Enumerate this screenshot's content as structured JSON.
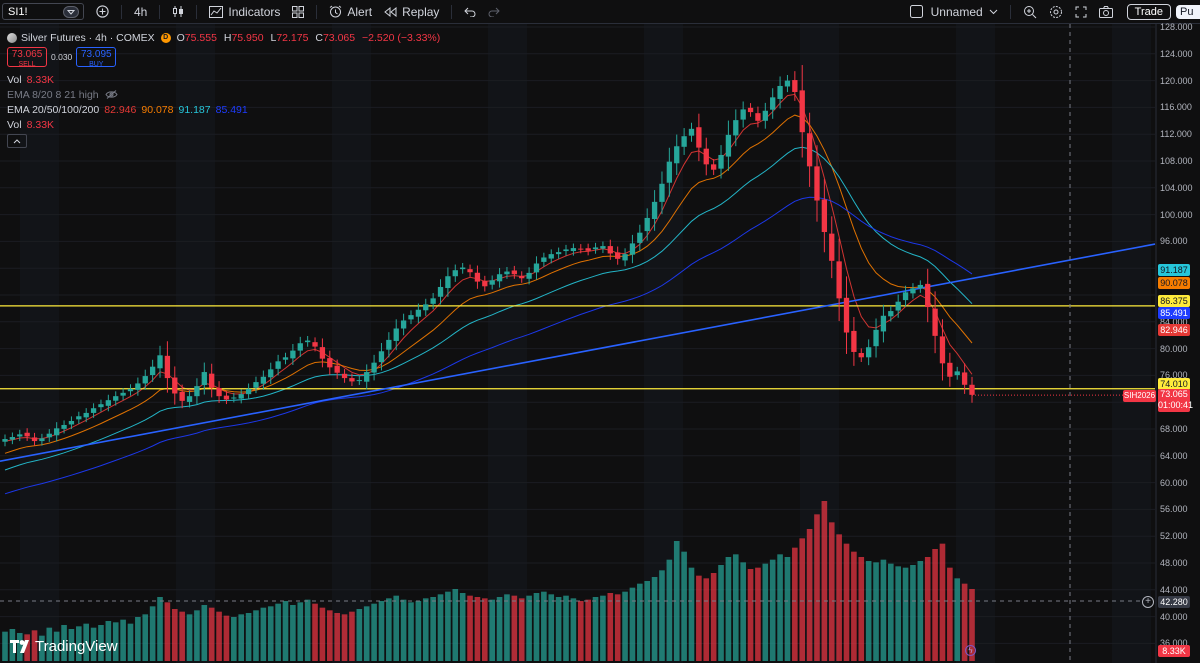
{
  "toolbar": {
    "symbol": "SI1!",
    "interval": "4h",
    "indicators_label": "Indicators",
    "alert_label": "Alert",
    "replay_label": "Replay",
    "layout_name": "Unnamed",
    "trade_label": "Trade",
    "publish_label": "Pu"
  },
  "legend": {
    "title": "Silver Futures · 4h · COMEX",
    "badge": "D",
    "ohlc": [
      {
        "k": "O",
        "v": "75.555"
      },
      {
        "k": "H",
        "v": "75.950"
      },
      {
        "k": "L",
        "v": "72.175"
      },
      {
        "k": "C",
        "v": "73.065"
      }
    ],
    "change": "−2.520 (−3.33%)",
    "sell_price": "73.065",
    "sell_label": "SELL",
    "spread": "0.030",
    "buy_price": "73.095",
    "buy_label": "BUY",
    "vol_label": "Vol",
    "vol_value": "8.33K",
    "ema_hidden": "EMA 8/20 8 21 high",
    "ema_label": "EMA 20/50/100/200",
    "ema_values": [
      "82.946",
      "90.078",
      "91.187",
      "85.491"
    ],
    "vol2_label": "Vol",
    "vol2_value": "8.33K"
  },
  "price_axis": {
    "ticks": [
      "128.000",
      "124.000",
      "120.000",
      "116.000",
      "112.000",
      "108.000",
      "104.000",
      "100.000",
      "96.000",
      "84.000",
      "80.000",
      "76.000",
      "68.000",
      "64.000",
      "60.000",
      "56.000",
      "52.000",
      "48.000",
      "44.000",
      "40.000",
      "36.000"
    ],
    "tags": {
      "ema100": "91.187",
      "ema50": "90.078",
      "level_upper": "86.375",
      "ema200": "85.491",
      "ema20": "82.946",
      "level_lower": "74.010",
      "contract": "SIH2026",
      "last_price": "73.065",
      "countdown": "01:00:41",
      "crosshair": "42.280",
      "volume": "8.33K"
    }
  },
  "colors": {
    "up": "#26a69a",
    "down": "#f23645",
    "trendline": "#2962ff",
    "level": "#ffeb3b",
    "ema20": "#e53935",
    "ema50": "#f57c00",
    "ema100": "#26c6da",
    "ema200": "#1e3cff"
  },
  "brand": "TradingView",
  "chart_data": {
    "type": "candlestick",
    "y_range": [
      36,
      128
    ],
    "levels": [
      86.375,
      74.01
    ],
    "closes": [
      66.5,
      66.8,
      67.2,
      66.9,
      66.2,
      66.6,
      67.3,
      68.1,
      68.6,
      69.2,
      69.9,
      70.4,
      71.1,
      71.7,
      72.3,
      72.9,
      73.4,
      74.0,
      74.8,
      75.9,
      77.3,
      79.0,
      75.6,
      73.3,
      72.2,
      72.9,
      74.4,
      76.5,
      74.2,
      72.9,
      72.4,
      72.7,
      73.2,
      74.0,
      75.0,
      75.8,
      76.9,
      78.1,
      78.7,
      79.7,
      80.8,
      81.2,
      80.3,
      78.5,
      77.2,
      76.4,
      75.6,
      75.1,
      75.3,
      76.5,
      77.9,
      79.6,
      81.3,
      83.0,
      84.2,
      85.0,
      85.8,
      86.6,
      87.5,
      89.2,
      90.8,
      91.7,
      92.1,
      91.4,
      90.0,
      89.3,
      90.2,
      91.1,
      91.5,
      91.1,
      90.5,
      91.3,
      92.7,
      93.6,
      94.1,
      94.4,
      94.8,
      95.0,
      94.9,
      94.6,
      95.1,
      95.3,
      94.2,
      93.4,
      94.1,
      95.7,
      97.3,
      99.5,
      101.9,
      104.6,
      107.9,
      110.2,
      111.7,
      112.8,
      110.0,
      107.5,
      106.7,
      108.9,
      111.9,
      114.1,
      115.7,
      115.3,
      114.0,
      115.5,
      117.5,
      119.2,
      120.0,
      118.3,
      112.3,
      107.2,
      102.1,
      97.4,
      93.1,
      87.5,
      82.4,
      79.5,
      78.7,
      80.2,
      82.8,
      84.9,
      85.6,
      87.0,
      88.4,
      89.0,
      89.5,
      86.2,
      81.9,
      77.8,
      75.8,
      76.6,
      74.6,
      73.1
    ],
    "volumes": [
      22,
      24,
      21,
      20,
      23,
      19,
      25,
      22,
      27,
      24,
      26,
      28,
      25,
      27,
      30,
      29,
      31,
      28,
      33,
      35,
      41,
      48,
      44,
      39,
      37,
      35,
      38,
      42,
      40,
      37,
      34,
      33,
      35,
      36,
      38,
      40,
      41,
      43,
      45,
      42,
      44,
      46,
      43,
      40,
      38,
      36,
      35,
      37,
      39,
      41,
      43,
      45,
      47,
      49,
      46,
      44,
      45,
      47,
      48,
      50,
      52,
      54,
      51,
      49,
      48,
      47,
      46,
      48,
      50,
      49,
      47,
      49,
      51,
      52,
      50,
      48,
      49,
      47,
      45,
      46,
      48,
      49,
      51,
      50,
      52,
      55,
      58,
      60,
      63,
      68,
      76,
      90,
      82,
      70,
      64,
      62,
      66,
      72,
      78,
      80,
      74,
      69,
      70,
      73,
      76,
      80,
      78,
      85,
      92,
      99,
      110,
      120,
      104,
      95,
      88,
      82,
      78,
      75,
      74,
      76,
      73,
      71,
      70,
      72,
      75,
      78,
      84,
      88,
      70,
      62,
      58,
      54
    ]
  }
}
